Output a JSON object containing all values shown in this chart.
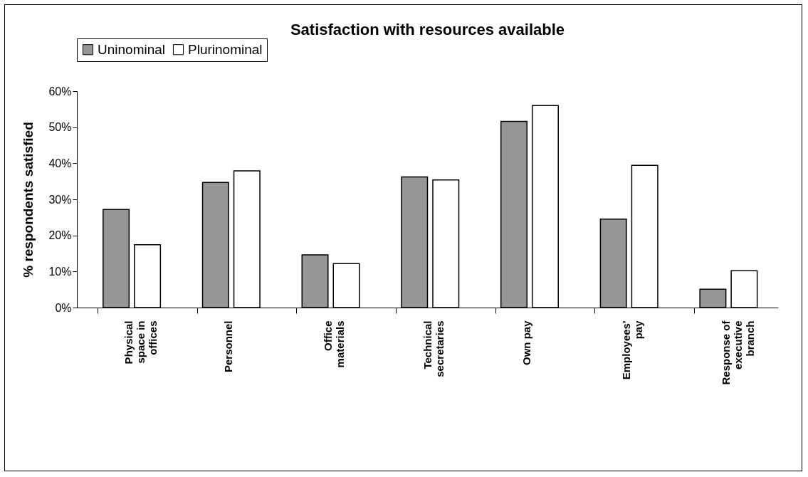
{
  "chart_data": {
    "type": "bar",
    "title": "Satisfaction with resources available",
    "ylabel": "% respondents satisfied",
    "categories": [
      "Physical space in offices",
      "Personnel",
      "Office materials",
      "Technical secretaries",
      "Own pay",
      "Employees' pay",
      "Response of executive branch"
    ],
    "series": [
      {
        "name": "Uninominal",
        "color": "#969696",
        "values": [
          27.2,
          34.7,
          14.6,
          36.2,
          51.6,
          24.5,
          5.1
        ]
      },
      {
        "name": "Plurinominal",
        "color": "#ffffff",
        "values": [
          17.4,
          37.9,
          12.2,
          35.4,
          56.0,
          39.4,
          10.2
        ]
      }
    ],
    "ylim": [
      0,
      60
    ],
    "yticks": [
      {
        "value": 0,
        "label": "0%"
      },
      {
        "value": 10,
        "label": "10%"
      },
      {
        "value": 20,
        "label": "20%"
      },
      {
        "value": 30,
        "label": "30%"
      },
      {
        "value": 40,
        "label": "40%"
      },
      {
        "value": 50,
        "label": "50%"
      },
      {
        "value": 60,
        "label": "60%"
      }
    ],
    "grid": false,
    "legend": "top"
  }
}
